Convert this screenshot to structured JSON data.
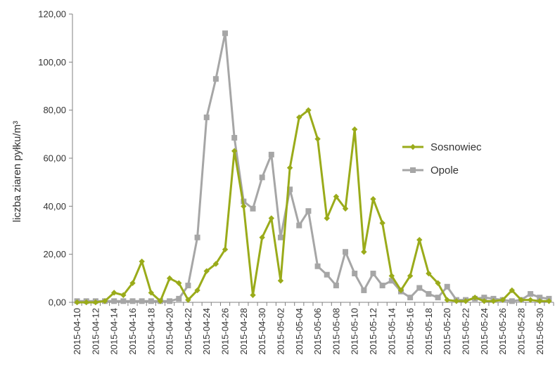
{
  "chart_data": {
    "type": "line",
    "title": "",
    "xlabel": "",
    "ylabel": "liczba ziaren pyłku/m³",
    "ylim": [
      0,
      120
    ],
    "y_ticks": [
      "0,00",
      "20,00",
      "40,00",
      "60,00",
      "80,00",
      "100,00",
      "120,00"
    ],
    "grid": false,
    "legend_position": "right",
    "x": [
      "2015-04-10",
      "2015-04-11",
      "2015-04-12",
      "2015-04-13",
      "2015-04-14",
      "2015-04-15",
      "2015-04-16",
      "2015-04-17",
      "2015-04-18",
      "2015-04-19",
      "2015-04-20",
      "2015-04-21",
      "2015-04-22",
      "2015-04-23",
      "2015-04-24",
      "2015-04-25",
      "2015-04-26",
      "2015-04-27",
      "2015-04-28",
      "2015-04-29",
      "2015-04-30",
      "2015-05-01",
      "2015-05-02",
      "2015-05-03",
      "2015-05-04",
      "2015-05-05",
      "2015-05-06",
      "2015-05-07",
      "2015-05-08",
      "2015-05-09",
      "2015-05-10",
      "2015-05-11",
      "2015-05-12",
      "2015-05-13",
      "2015-05-14",
      "2015-05-15",
      "2015-05-16",
      "2015-05-17",
      "2015-05-18",
      "2015-05-19",
      "2015-05-20",
      "2015-05-21",
      "2015-05-22",
      "2015-05-23",
      "2015-05-24",
      "2015-05-25",
      "2015-05-26",
      "2015-05-27",
      "2015-05-28",
      "2015-05-29",
      "2015-05-30",
      "2015-05-31"
    ],
    "x_tick_labels": [
      "2015-04-10",
      "2015-04-12",
      "2015-04-14",
      "2015-04-16",
      "2015-04-18",
      "2015-04-20",
      "2015-04-22",
      "2015-04-24",
      "2015-04-26",
      "2015-04-28",
      "2015-04-30",
      "2015-05-02",
      "2015-05-04",
      "2015-05-06",
      "2015-05-08",
      "2015-05-10",
      "2015-05-12",
      "2015-05-14",
      "2015-05-16",
      "2015-05-18",
      "2015-05-20",
      "2015-05-22",
      "2015-05-24",
      "2015-05-26",
      "2015-05-28",
      "2015-05-30"
    ],
    "series": [
      {
        "name": "Sosnowiec",
        "color": "#9aab1a",
        "marker": "diamond",
        "values": [
          0,
          0,
          0,
          0.5,
          4,
          3,
          8,
          17,
          4,
          0.5,
          10,
          8,
          1,
          5,
          13,
          16,
          22,
          63,
          40,
          3,
          27,
          35,
          9,
          56,
          77,
          80,
          68,
          35,
          44,
          39,
          72,
          21,
          43,
          33,
          11,
          5,
          11,
          26,
          12,
          8,
          1,
          0.5,
          0.5,
          2,
          0.5,
          0.5,
          1,
          5,
          1,
          1,
          0.5,
          0.5
        ]
      },
      {
        "name": "Opole",
        "color": "#a6a6a6",
        "marker": "square",
        "values": [
          0.5,
          0.5,
          0.5,
          0.5,
          0.5,
          0.5,
          0.5,
          0.5,
          0.5,
          0.5,
          0.5,
          1.5,
          7,
          27,
          77,
          93,
          112,
          68.5,
          42,
          39,
          52,
          61.5,
          27,
          47,
          32,
          38,
          15,
          11.5,
          7,
          21,
          12,
          5,
          12,
          7,
          9,
          4.5,
          2,
          6,
          3.5,
          2,
          6.5,
          1,
          1,
          1.5,
          2,
          1.5,
          1,
          0.5,
          1,
          3.5,
          2,
          1.5
        ]
      }
    ]
  }
}
